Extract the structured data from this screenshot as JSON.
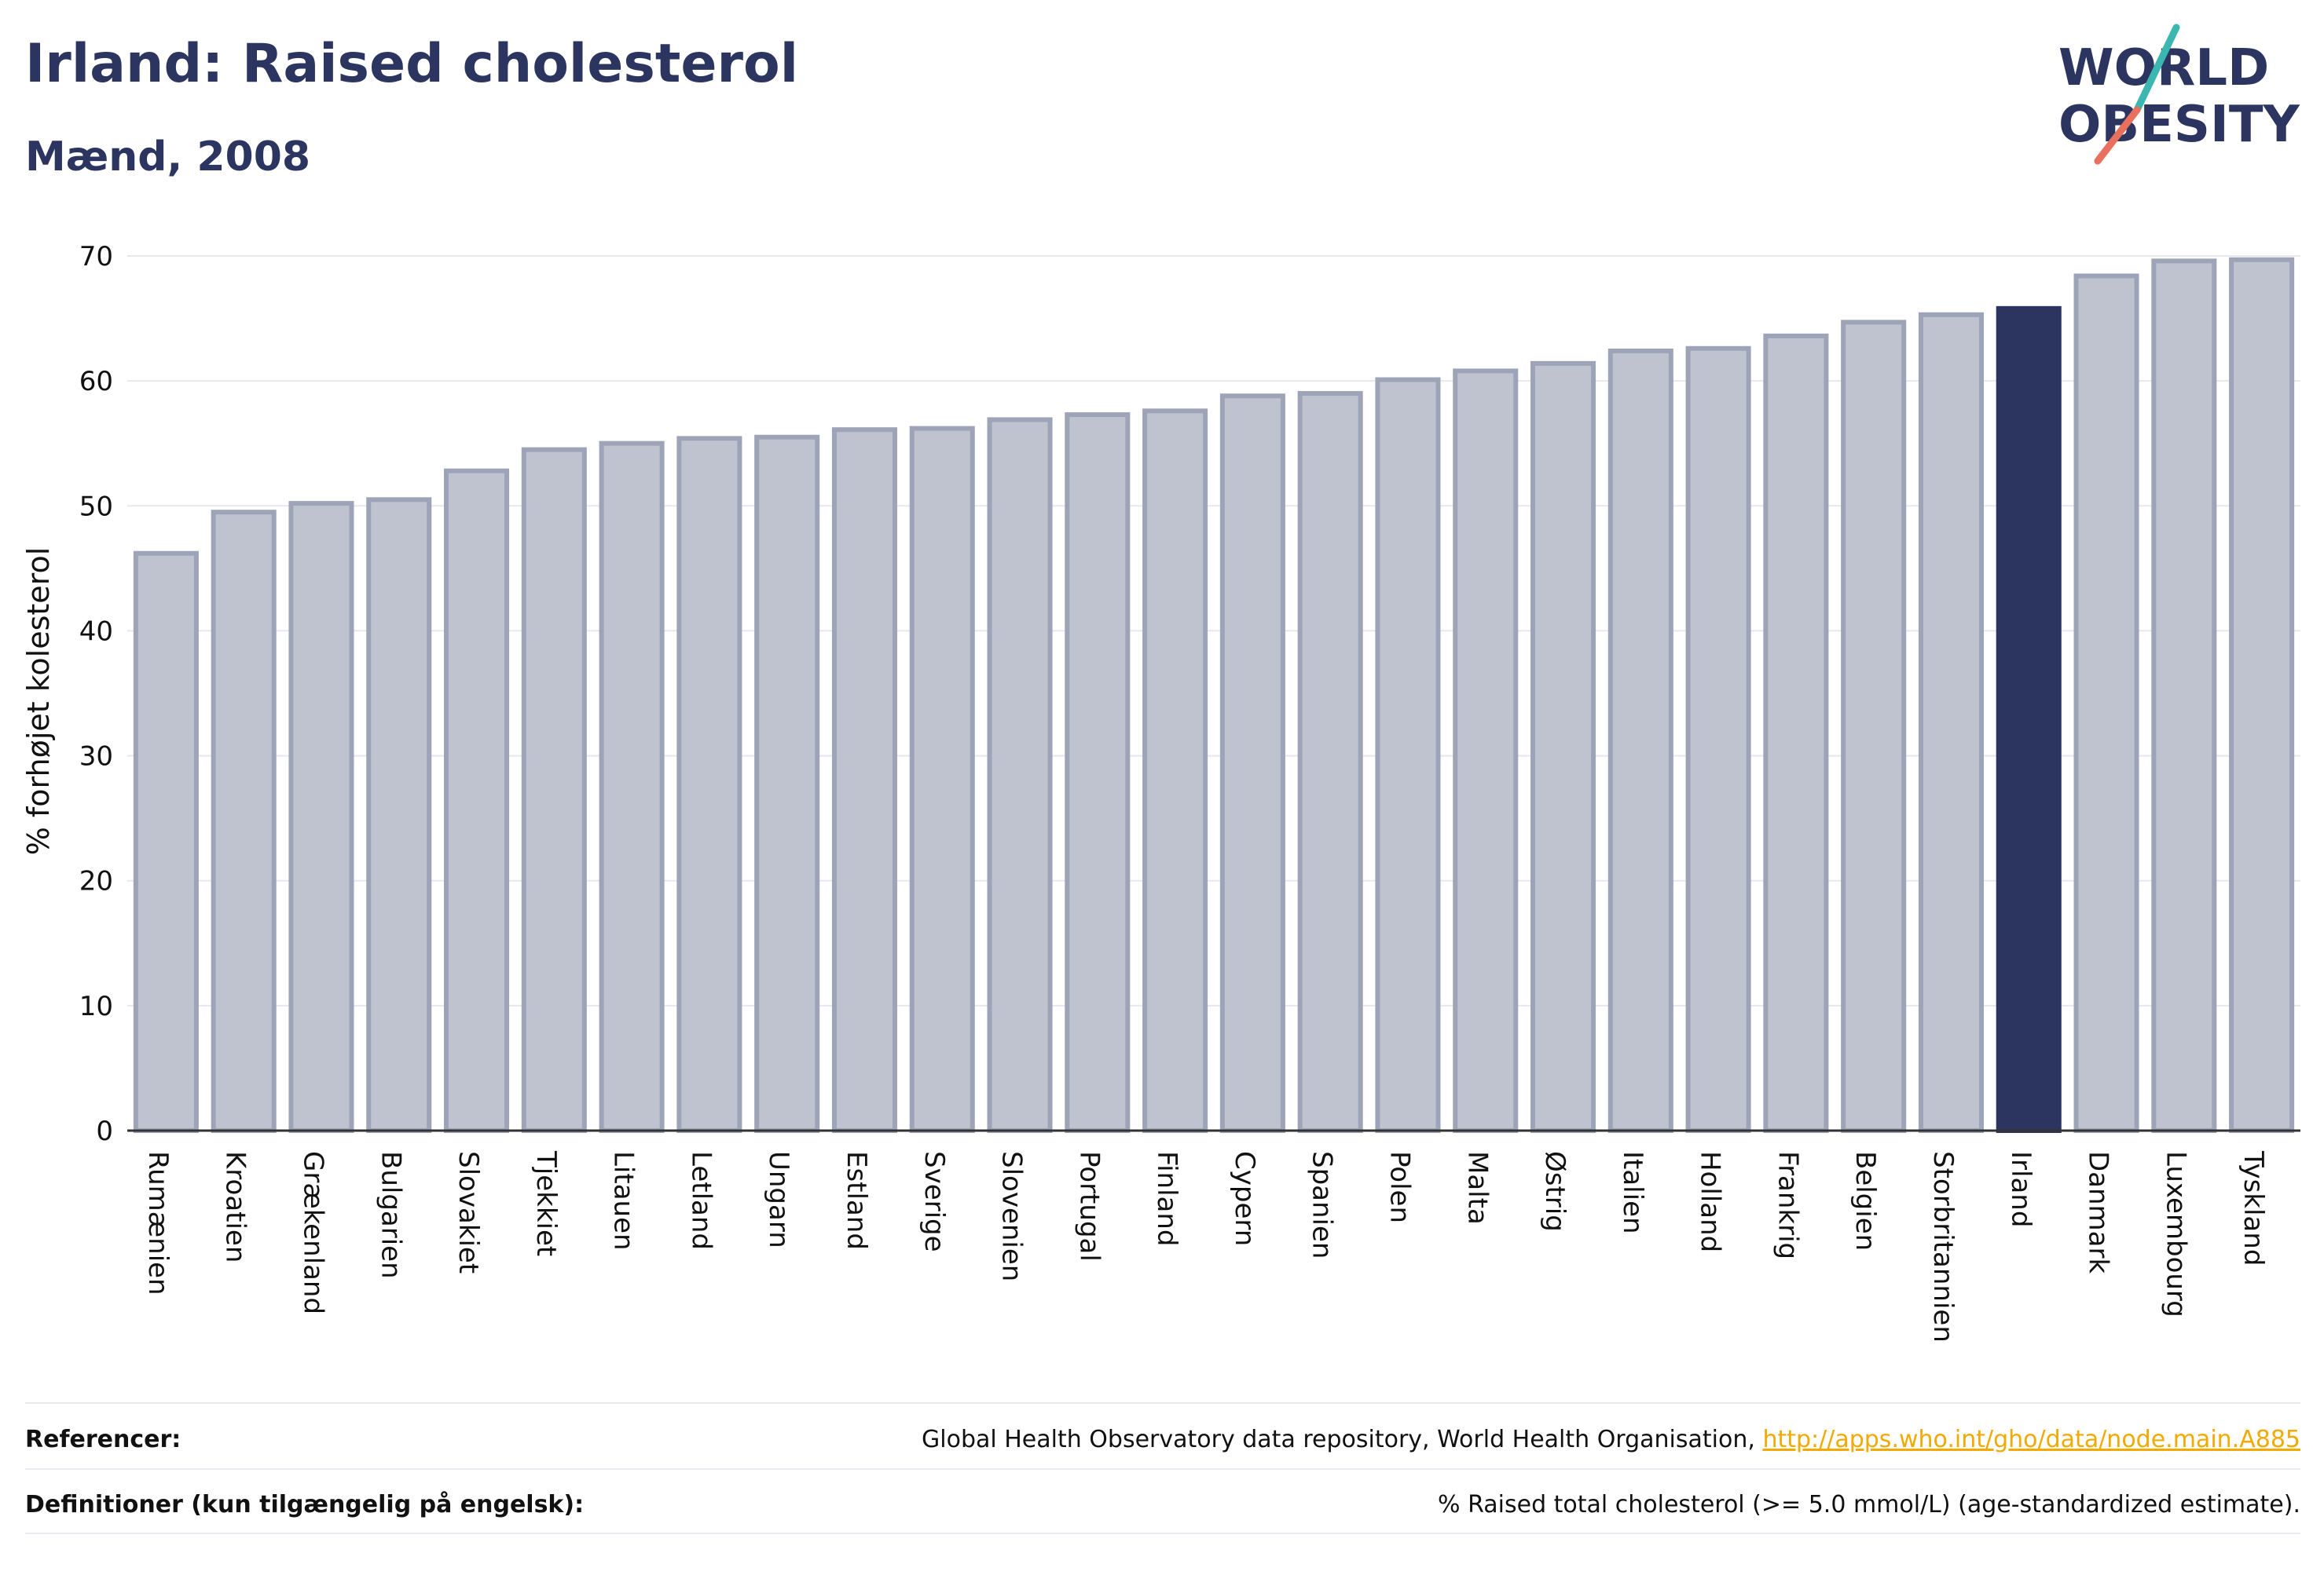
{
  "header": {
    "title": "Irland: Raised cholesterol",
    "subtitle": "Mænd, 2008"
  },
  "logo": {
    "line1": "WORLD",
    "line2": "OBESITY",
    "accent_teal": "#3bb6b0",
    "accent_coral": "#e8705c",
    "text_color": "#2b3560"
  },
  "colors": {
    "bar_fill": "#bfc3d0",
    "bar_edge": "#9ea4b8",
    "highlight": "#2b3560",
    "grid": "#e6e8ee"
  },
  "chart_data": {
    "type": "bar",
    "title": "",
    "xlabel": "",
    "ylabel": "% forhøjet kolesterol",
    "ylim": [
      0,
      70
    ],
    "yticks": [
      0,
      10,
      20,
      30,
      40,
      50,
      60,
      70
    ],
    "grid": true,
    "categories": [
      "Rumænien",
      "Kroatien",
      "Grækenland",
      "Bulgarien",
      "Slovakiet",
      "Tjekkiet",
      "Litauen",
      "Letland",
      "Ungarn",
      "Estland",
      "Sverige",
      "Slovenien",
      "Portugal",
      "Finland",
      "Cypern",
      "Spanien",
      "Polen",
      "Malta",
      "Østrig",
      "Italien",
      "Holland",
      "Frankrig",
      "Belgien",
      "Storbritannien",
      "Irland",
      "Danmark",
      "Luxembourg",
      "Tyskland"
    ],
    "values": [
      46.2,
      49.5,
      50.2,
      50.5,
      52.8,
      54.5,
      55.0,
      55.4,
      55.5,
      56.1,
      56.2,
      56.9,
      57.3,
      57.6,
      58.8,
      59.0,
      60.1,
      60.8,
      61.4,
      62.4,
      62.6,
      63.6,
      64.7,
      65.3,
      65.8,
      68.4,
      69.6,
      69.7
    ],
    "highlight": "Irland"
  },
  "footer": {
    "references_label": "Referencer:",
    "references_text": "Global Health Observatory data repository, World Health Organisation, ",
    "references_link": "http://apps.who.int/gho/data/node.main.A885",
    "definitions_label": "Definitioner (kun tilgængelig på engelsk):",
    "definitions_text": "% Raised total cholesterol (>= 5.0 mmol/L) (age-standardized estimate)."
  }
}
